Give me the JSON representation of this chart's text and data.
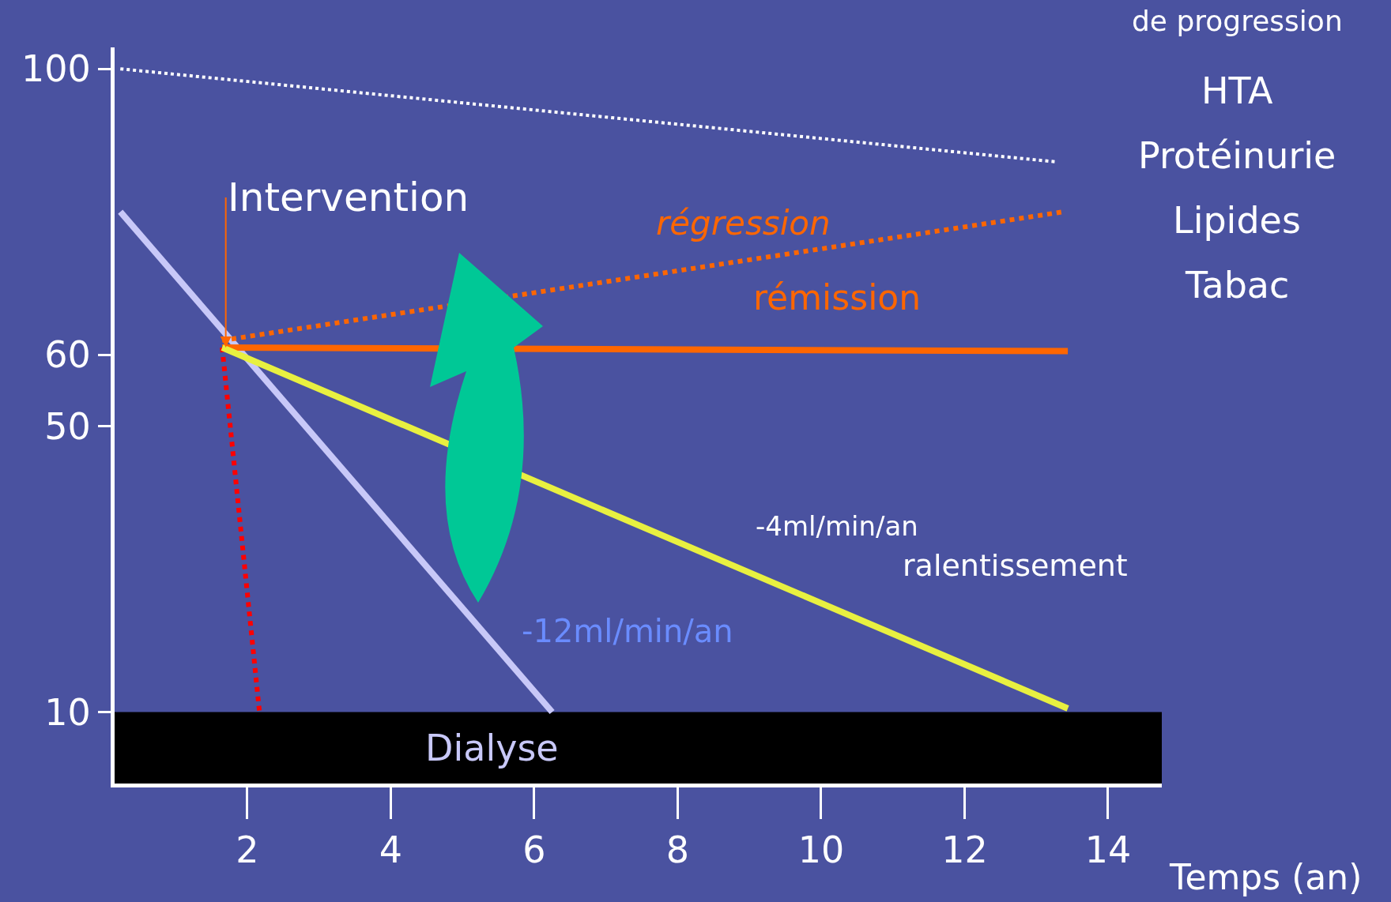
{
  "chart_data": {
    "type": "line",
    "xlabel": "Temps (an)",
    "xlim": [
      0.15,
      14.75
    ],
    "xticks": [
      2,
      4,
      6,
      8,
      10,
      12,
      14
    ],
    "ylim": [
      0,
      103
    ],
    "yticks": [
      10,
      50,
      60,
      100
    ],
    "grid": false,
    "marker": "none",
    "series": [
      {
        "color": "#ffffff",
        "line_style": "dotted",
        "x": [
          0.23,
          13.26
        ],
        "values": [
          100,
          87
        ]
      },
      {
        "color": "#c8c8f8",
        "line_style": "solid",
        "x": [
          0.23,
          6.25
        ],
        "values": [
          80,
          10
        ]
      },
      {
        "color": "#ff0000",
        "line_style": "dotted",
        "x": [
          1.65,
          2.17
        ],
        "values": [
          61,
          10
        ]
      },
      {
        "color": "#ff6600",
        "line_style": "solid",
        "x": [
          1.65,
          13.44
        ],
        "values": [
          61,
          60.5
        ]
      },
      {
        "color": "#ff6600",
        "line_style": "dotted",
        "x": [
          1.65,
          13.38
        ],
        "values": [
          62,
          80
        ]
      },
      {
        "color": "#e8f040",
        "line_style": "solid",
        "x": [
          1.65,
          13.44
        ],
        "values": [
          61,
          10.5
        ]
      }
    ],
    "bands": [
      {
        "axis": "y",
        "from": 0,
        "to": 10,
        "label": "Dialyse",
        "color": "#000000"
      }
    ],
    "annotations": [
      {
        "text": "Intervention",
        "x": 1.7,
        "y": 61
      },
      "régression",
      "rémission",
      "-4ml/min/an",
      "ralentissement",
      "-12ml/min/an",
      "de progression",
      "HTA",
      "Protéinurie",
      "Lipides",
      "Tabac"
    ]
  }
}
